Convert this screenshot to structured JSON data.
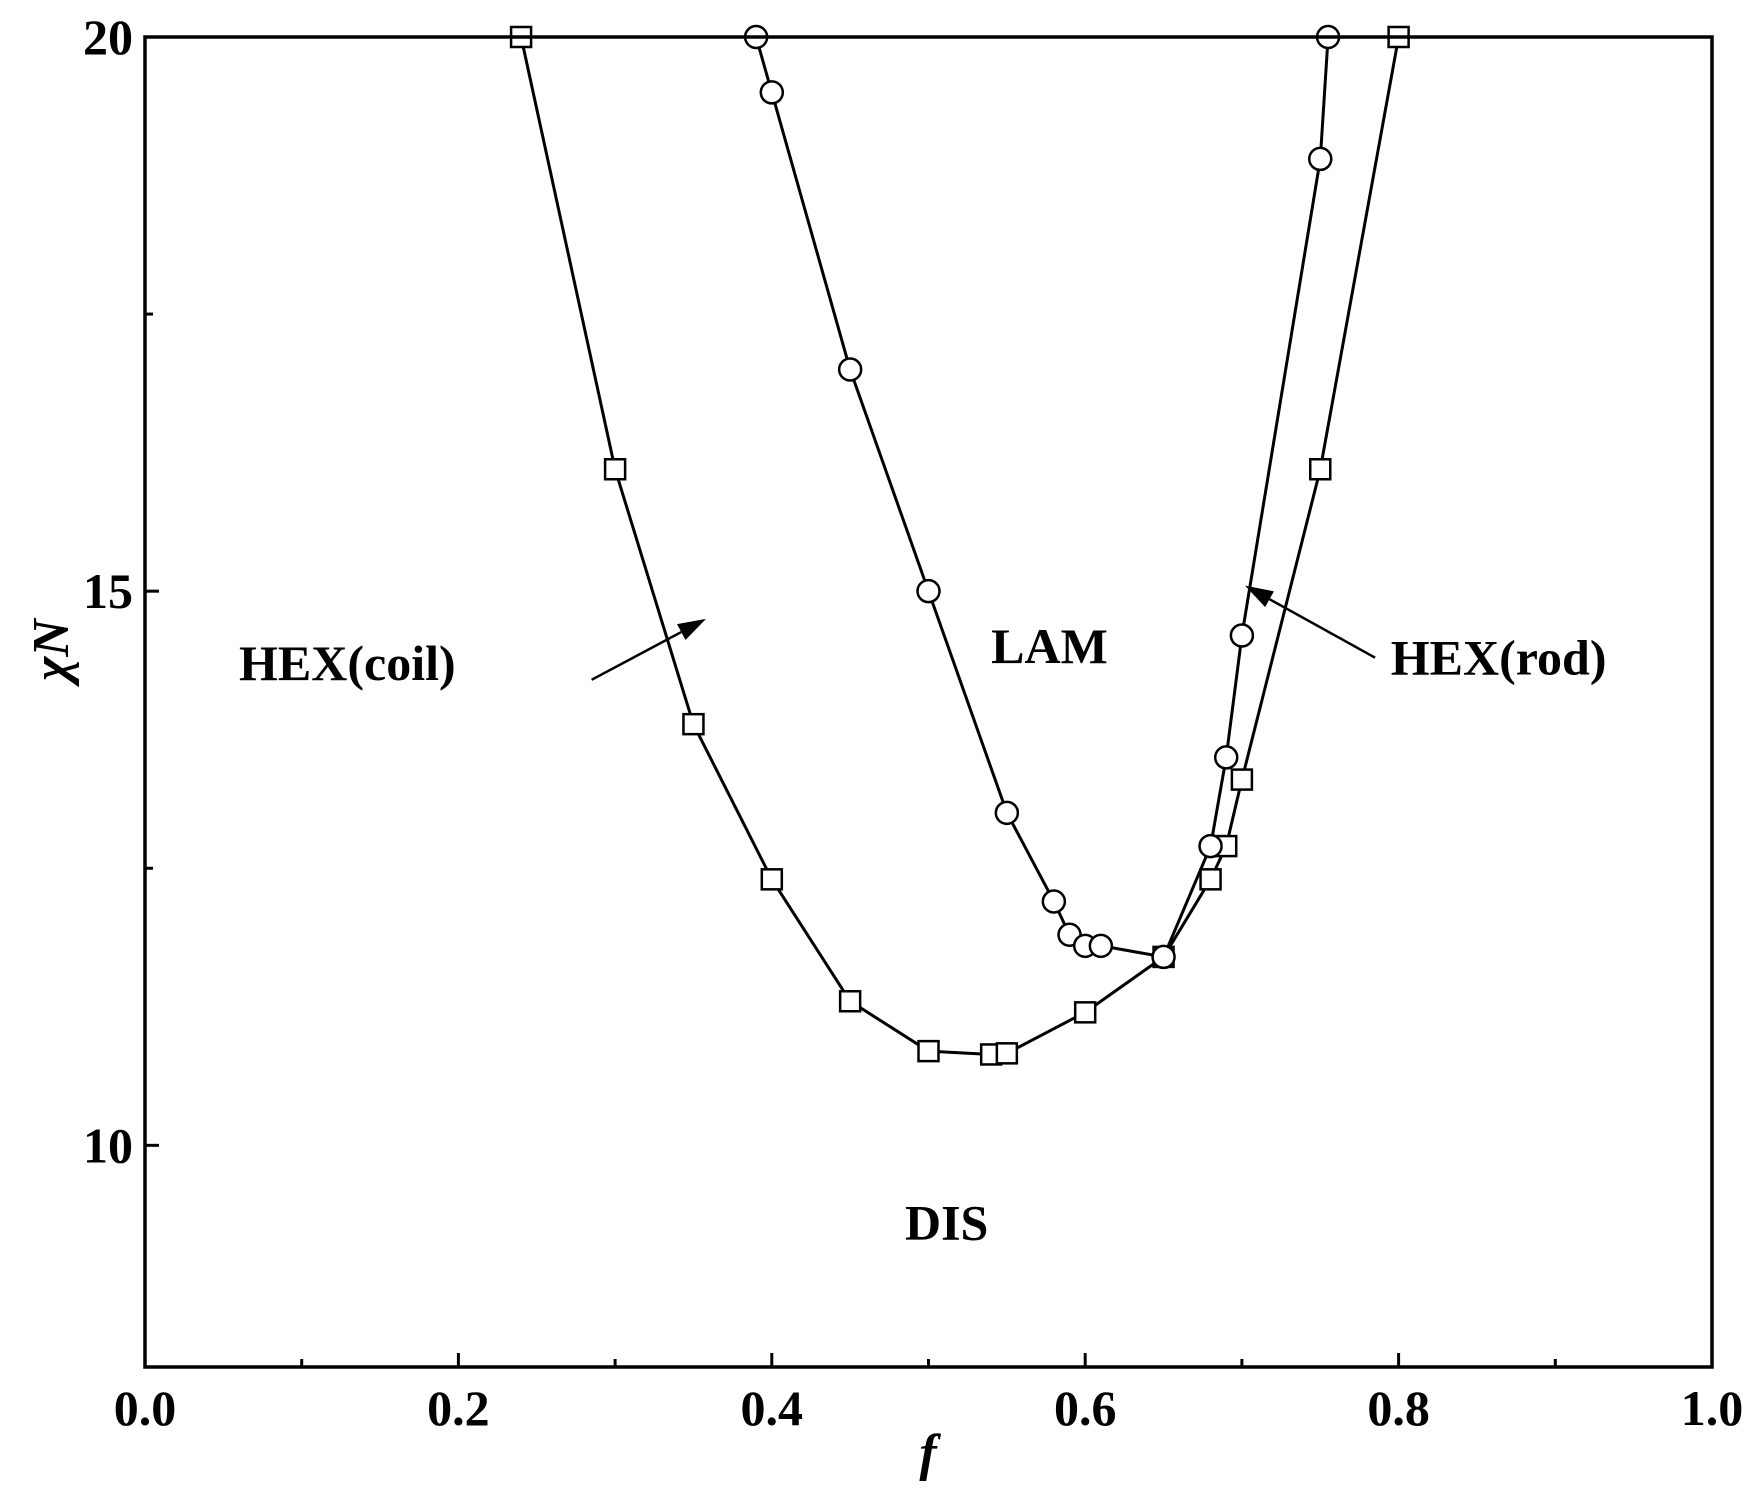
{
  "chart_data": {
    "type": "line",
    "xlabel": "f",
    "ylabel": "χN",
    "xlim": [
      0.0,
      1.0
    ],
    "ylim": [
      8.0,
      20.0
    ],
    "xticks": [
      "0.0",
      "0.2",
      "0.4",
      "0.6",
      "0.8",
      "1.0"
    ],
    "xtick_values": [
      0.0,
      0.2,
      0.4,
      0.6,
      0.8,
      1.0
    ],
    "xminor_values": [
      0.1,
      0.3,
      0.5,
      0.7,
      0.9
    ],
    "yticks": [
      "10",
      "15",
      "20"
    ],
    "ytick_values": [
      10,
      15,
      20
    ],
    "yminor_values": [
      12.5,
      17.5
    ],
    "grid": false,
    "series": [
      {
        "marker": "square",
        "x": [
          0.24,
          0.3,
          0.35,
          0.4,
          0.45,
          0.5,
          0.54,
          0.55,
          0.6,
          0.65,
          0.68,
          0.69,
          0.7,
          0.75,
          0.8
        ],
        "y": [
          20.0,
          16.1,
          13.8,
          12.4,
          11.3,
          10.85,
          10.82,
          10.83,
          11.2,
          11.7,
          12.4,
          12.7,
          13.3,
          16.1,
          20.0
        ]
      },
      {
        "marker": "circle",
        "x": [
          0.39,
          0.4,
          0.45,
          0.5,
          0.55,
          0.58,
          0.59,
          0.6,
          0.61,
          0.65,
          0.68,
          0.69,
          0.7,
          0.75,
          0.755
        ],
        "y": [
          20.0,
          19.5,
          17.0,
          15.0,
          13.0,
          12.2,
          11.9,
          11.8,
          11.8,
          11.7,
          12.7,
          13.5,
          14.6,
          18.9,
          20.0
        ]
      }
    ],
    "annotations": [
      {
        "text": "HEX(coil)",
        "x": 0.06,
        "y": 14.2
      },
      {
        "text": "LAM",
        "x": 0.54,
        "y": 14.35
      },
      {
        "text": "HEX(rod)",
        "x": 0.795,
        "y": 14.25
      },
      {
        "text": "DIS",
        "x": 0.485,
        "y": 9.15
      }
    ],
    "arrows": [
      {
        "from": [
          0.285,
          14.2
        ],
        "to": [
          0.358,
          14.75
        ]
      },
      {
        "from": [
          0.785,
          14.4
        ],
        "to": [
          0.702,
          15.05
        ]
      }
    ]
  }
}
